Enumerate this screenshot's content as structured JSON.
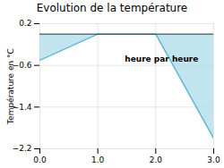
{
  "chart_data": {
    "type": "line",
    "title": "Evolution de la température",
    "ylabel": "Température en °C",
    "annotation": "heure par heure",
    "x": [
      0,
      1,
      2,
      3
    ],
    "series": [
      {
        "type": "area",
        "color": "#a8d8e8",
        "values": [
          -0.5,
          0.0,
          0.0,
          -2.0
        ]
      },
      {
        "type": "line",
        "color": "#5bb8d4",
        "values": [
          -0.5,
          0.0,
          0.0,
          -2.0
        ]
      }
    ],
    "xlim": [
      0,
      3
    ],
    "ylim": [
      -2.2,
      0.2
    ],
    "xticks": [
      0,
      1,
      2,
      3
    ],
    "yticks": [
      0.2,
      -0.6,
      -1.4,
      -2.2
    ],
    "grid": true
  }
}
